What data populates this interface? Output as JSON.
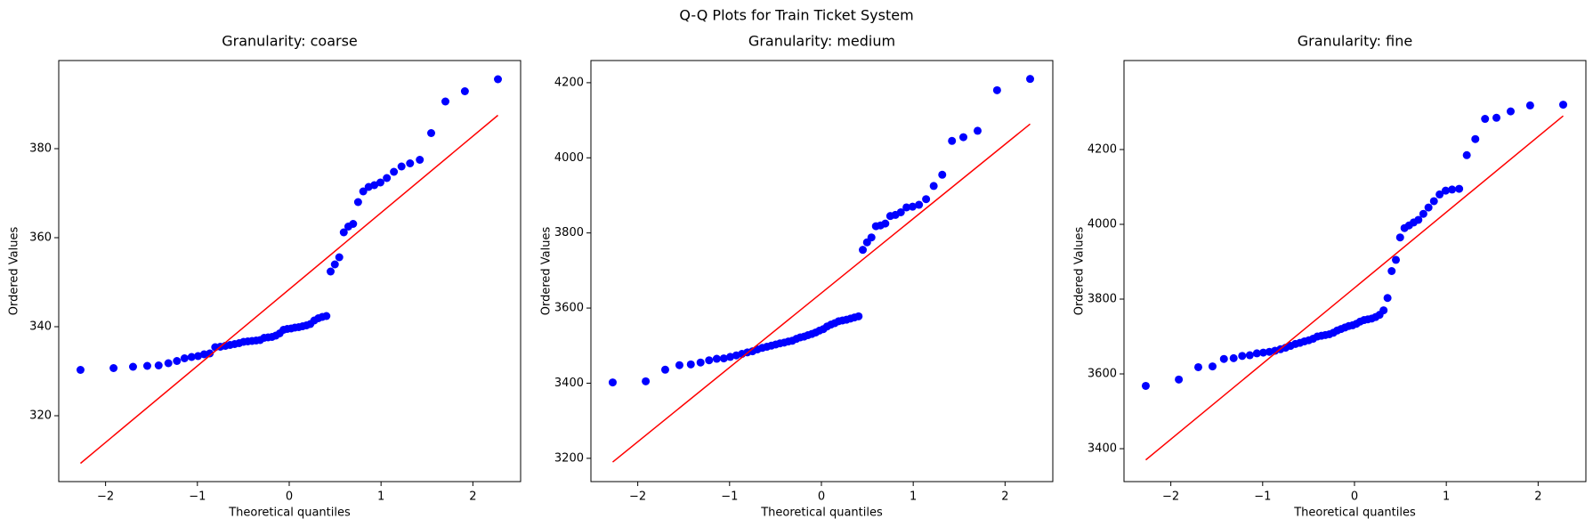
{
  "title": "Q-Q Plots for Train Ticket System",
  "chart_data": [
    {
      "type": "scatter",
      "title": "Granularity: coarse",
      "x_label": "Theoretical quantiles",
      "y_label": "Ordered Values",
      "color": "#0000ff",
      "x": [
        -2.273,
        -1.913,
        -1.701,
        -1.546,
        -1.422,
        -1.316,
        -1.223,
        -1.14,
        -1.063,
        -0.993,
        -0.927,
        -0.865,
        -0.806,
        -0.75,
        -0.696,
        -0.644,
        -0.594,
        -0.545,
        -0.497,
        -0.451,
        -0.405,
        -0.36,
        -0.317,
        -0.273,
        -0.23,
        -0.188,
        -0.146,
        -0.104,
        -0.062,
        -0.021,
        0.021,
        0.062,
        0.104,
        0.146,
        0.188,
        0.23,
        0.273,
        0.317,
        0.36,
        0.405,
        0.451,
        0.497,
        0.545,
        0.594,
        0.644,
        0.696,
        0.75,
        0.806,
        0.865,
        0.927,
        0.993,
        1.063,
        1.14,
        1.223,
        1.316,
        1.422,
        1.546,
        1.701,
        1.913,
        2.273
      ],
      "values": [
        330.3,
        330.7,
        331.0,
        331.2,
        331.3,
        331.8,
        332.3,
        332.9,
        333.2,
        333.4,
        333.8,
        334.0,
        335.4,
        335.5,
        335.7,
        335.9,
        336.1,
        336.3,
        336.6,
        336.7,
        336.8,
        336.9,
        337.0,
        337.5,
        337.6,
        337.7,
        338.0,
        338.5,
        339.3,
        339.5,
        339.6,
        339.8,
        339.9,
        340.1,
        340.3,
        340.6,
        341.4,
        341.9,
        342.2,
        342.4,
        352.4,
        354.0,
        355.6,
        361.2,
        362.5,
        363.1,
        368.0,
        370.4,
        371.4,
        371.8,
        372.4,
        373.4,
        374.8,
        376.0,
        376.7,
        377.5,
        383.5,
        390.6,
        392.9,
        395.6
      ],
      "fit_line": {
        "color": "#ff0000",
        "x": [
          -2.273,
          2.273
        ],
        "y": [
          309.3,
          387.5
        ]
      },
      "xlim": [
        -2.51,
        2.52
      ],
      "ylim": [
        305.2,
        399.8
      ],
      "xticks": [
        {
          "value": -2,
          "label": "−2"
        },
        {
          "value": -1,
          "label": "−1"
        },
        0,
        1,
        2
      ],
      "yticks": [
        320,
        340,
        360,
        380
      ]
    },
    {
      "type": "scatter",
      "title": "Granularity: medium",
      "x_label": "Theoretical quantiles",
      "y_label": "Ordered Values",
      "color": "#0000ff",
      "x": [
        -2.273,
        -1.913,
        -1.701,
        -1.546,
        -1.422,
        -1.316,
        -1.223,
        -1.14,
        -1.063,
        -0.993,
        -0.927,
        -0.865,
        -0.806,
        -0.75,
        -0.696,
        -0.644,
        -0.594,
        -0.545,
        -0.497,
        -0.451,
        -0.405,
        -0.36,
        -0.317,
        -0.273,
        -0.23,
        -0.188,
        -0.146,
        -0.104,
        -0.062,
        -0.021,
        0.021,
        0.062,
        0.104,
        0.146,
        0.188,
        0.23,
        0.273,
        0.317,
        0.36,
        0.405,
        0.451,
        0.497,
        0.545,
        0.594,
        0.644,
        0.696,
        0.75,
        0.806,
        0.865,
        0.927,
        0.993,
        1.063,
        1.14,
        1.223,
        1.316,
        1.422,
        1.546,
        1.701,
        1.913,
        2.273
      ],
      "values": [
        3402,
        3405,
        3436,
        3448,
        3450,
        3455,
        3461,
        3465,
        3466,
        3470,
        3474,
        3478,
        3482,
        3485,
        3490,
        3494,
        3497,
        3500,
        3503,
        3506,
        3508,
        3511,
        3513,
        3518,
        3522,
        3524,
        3528,
        3531,
        3535,
        3540,
        3544,
        3551,
        3556,
        3560,
        3565,
        3567,
        3569,
        3572,
        3575,
        3578,
        3755,
        3775,
        3788,
        3818,
        3820,
        3825,
        3845,
        3848,
        3855,
        3868,
        3870,
        3875,
        3890,
        3925,
        3955,
        4045,
        4055,
        4072,
        4180,
        4210
      ],
      "fit_line": {
        "color": "#ff0000",
        "x": [
          -2.273,
          2.273
        ],
        "y": [
          3190,
          4090
        ]
      },
      "xlim": [
        -2.51,
        2.52
      ],
      "ylim": [
        3138,
        4259
      ],
      "xticks": [
        {
          "value": -2,
          "label": "−2"
        },
        {
          "value": -1,
          "label": "−1"
        },
        0,
        1,
        2
      ],
      "yticks": [
        3200,
        3400,
        3600,
        3800,
        4000,
        4200
      ]
    },
    {
      "type": "scatter",
      "title": "Granularity: fine",
      "x_label": "Theoretical quantiles",
      "y_label": "Ordered Values",
      "color": "#0000ff",
      "x": [
        -2.273,
        -1.913,
        -1.701,
        -1.546,
        -1.422,
        -1.316,
        -1.223,
        -1.14,
        -1.063,
        -0.993,
        -0.927,
        -0.865,
        -0.806,
        -0.75,
        -0.696,
        -0.644,
        -0.594,
        -0.545,
        -0.497,
        -0.451,
        -0.405,
        -0.36,
        -0.317,
        -0.273,
        -0.23,
        -0.188,
        -0.146,
        -0.104,
        -0.062,
        -0.021,
        0.021,
        0.062,
        0.104,
        0.146,
        0.188,
        0.23,
        0.273,
        0.317,
        0.36,
        0.405,
        0.451,
        0.497,
        0.545,
        0.594,
        0.644,
        0.696,
        0.75,
        0.806,
        0.865,
        0.927,
        0.993,
        1.063,
        1.14,
        1.223,
        1.316,
        1.422,
        1.546,
        1.701,
        1.913,
        2.273
      ],
      "values": [
        3568,
        3585,
        3618,
        3620,
        3640,
        3642,
        3648,
        3650,
        3655,
        3657,
        3659,
        3662,
        3666,
        3670,
        3675,
        3680,
        3683,
        3687,
        3690,
        3694,
        3700,
        3702,
        3704,
        3706,
        3710,
        3716,
        3720,
        3724,
        3728,
        3730,
        3734,
        3740,
        3744,
        3746,
        3748,
        3752,
        3758,
        3770,
        3803,
        3875,
        3905,
        3965,
        3990,
        3997,
        4005,
        4012,
        4028,
        4045,
        4062,
        4080,
        4090,
        4093,
        4095,
        4185,
        4228,
        4282,
        4285,
        4302,
        4318,
        4320
      ],
      "fit_line": {
        "color": "#ff0000",
        "x": [
          -2.273,
          2.273
        ],
        "y": [
          3370,
          4290
        ]
      },
      "xlim": [
        -2.51,
        2.52
      ],
      "ylim": [
        3312,
        4438
      ],
      "xticks": [
        {
          "value": -2,
          "label": "−2"
        },
        {
          "value": -1,
          "label": "−1"
        },
        0,
        1,
        2
      ],
      "yticks": [
        3400,
        3600,
        3800,
        4000,
        4200
      ]
    }
  ]
}
